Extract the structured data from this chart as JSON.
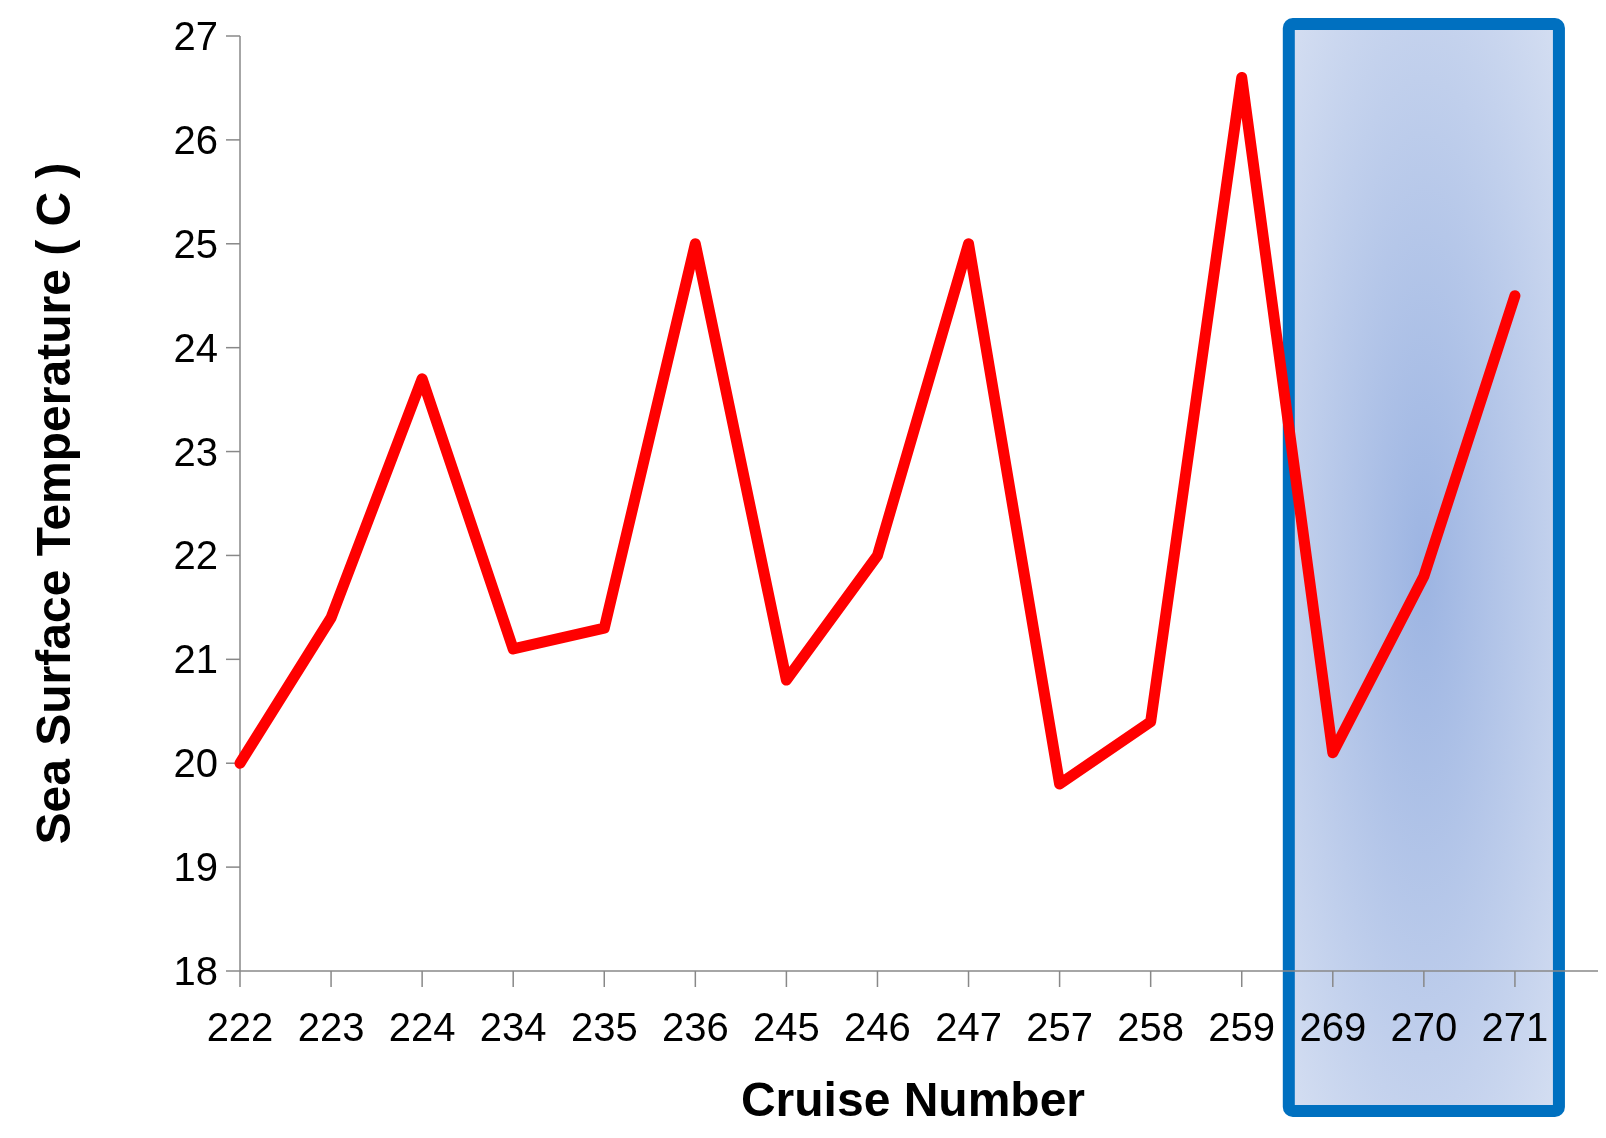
{
  "chart_data": {
    "type": "line",
    "xlabel": "Cruise Number",
    "ylabel": "Sea Surface Temperature ( C )",
    "categories": [
      "222",
      "223",
      "224",
      "234",
      "235",
      "236",
      "245",
      "246",
      "247",
      "257",
      "258",
      "259",
      "269",
      "270",
      "271"
    ],
    "series": [
      {
        "color": "#ff0000",
        "values": [
          20.0,
          21.4,
          23.7,
          21.1,
          21.3,
          25.0,
          20.8,
          22.0,
          25.0,
          19.8,
          20.4,
          26.6,
          20.1,
          21.8,
          24.5
        ]
      }
    ],
    "ylim": [
      18,
      27
    ],
    "yticks": [
      18,
      19,
      20,
      21,
      22,
      23,
      24,
      25,
      26,
      27
    ],
    "bands": [
      {
        "axis": "x",
        "from": "269",
        "to": "271",
        "color": "#0070c0"
      }
    ],
    "grid": false,
    "marker": "none",
    "line_style": "solid"
  }
}
